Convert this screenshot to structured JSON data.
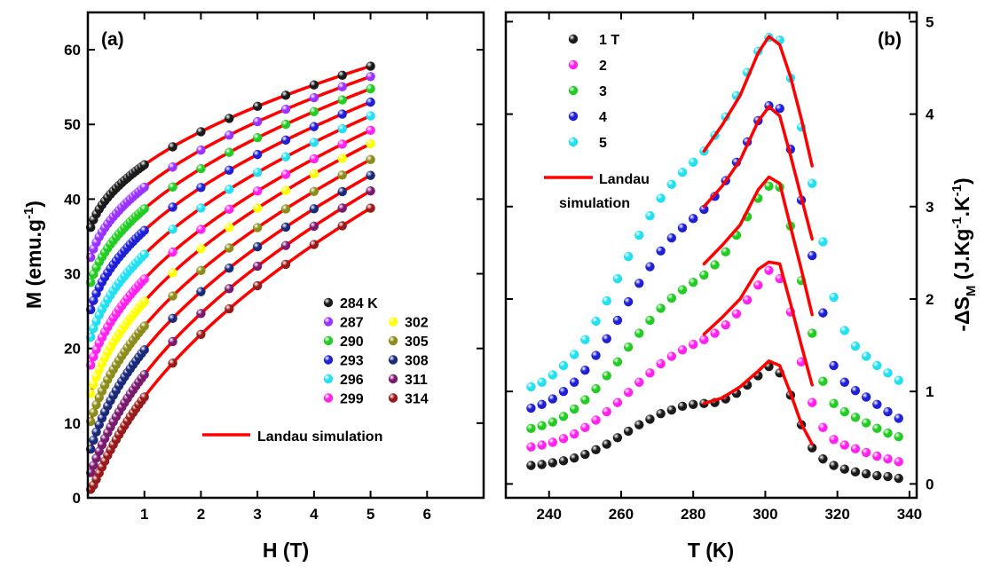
{
  "chart_data": [
    {
      "type": "scatter",
      "panel_label": "(a)",
      "xlabel": "H (T)",
      "ylabel": "M (emu.g-1)",
      "ylabel_parts": {
        "main": "M (emu.g",
        "sup": "-1",
        "end": ")"
      },
      "xlim": [
        0,
        7
      ],
      "ylim": [
        0,
        65
      ],
      "xticks": [
        1,
        2,
        3,
        4,
        5,
        6
      ],
      "yticks": [
        0,
        10,
        20,
        30,
        40,
        50,
        60
      ],
      "x": [
        0.05,
        0.1,
        0.15,
        0.2,
        0.25,
        0.3,
        0.35,
        0.4,
        0.45,
        0.5,
        0.55,
        0.6,
        0.65,
        0.7,
        0.75,
        0.8,
        0.85,
        0.9,
        0.95,
        1.0,
        1.5,
        2.0,
        2.5,
        3.0,
        3.5,
        4.0,
        4.5,
        5.0
      ],
      "series": [
        {
          "name": "284 K",
          "color": "#1a1a1a",
          "m0": 33.7,
          "m1": 44.6,
          "m5": 57.8
        },
        {
          "name": "287",
          "color": "#9933ff",
          "m0": 29.4,
          "m1": 41.6,
          "m5": 56.4
        },
        {
          "name": "290",
          "color": "#22cc22",
          "m0": 26.2,
          "m1": 38.7,
          "m5": 54.8
        },
        {
          "name": "293",
          "color": "#1f1fd6",
          "m0": 22.3,
          "m1": 35.8,
          "m5": 53.0
        },
        {
          "name": "296",
          "color": "#22e0f0",
          "m0": 18.8,
          "m1": 32.6,
          "m5": 51.2
        },
        {
          "name": "299",
          "color": "#ff22ee",
          "m0": 15.3,
          "m1": 29.3,
          "m5": 49.3
        },
        {
          "name": "302",
          "color": "#ffff00",
          "m0": 11.2,
          "m1": 26.3,
          "m5": 47.5
        },
        {
          "name": "305",
          "color": "#8c8c1a",
          "m0": 7.6,
          "m1": 23.0,
          "m5": 45.4
        },
        {
          "name": "308",
          "color": "#1a2a78",
          "m0": 3.9,
          "m1": 19.8,
          "m5": 43.3
        },
        {
          "name": "311",
          "color": "#7a1a6e",
          "m0": 1.6,
          "m1": 16.5,
          "m5": 41.3
        },
        {
          "name": "314",
          "color": "#991a1a",
          "m0": 0.6,
          "m1": 13.5,
          "m5": 39.1
        }
      ],
      "fit_name": "Landau simulation",
      "fit_color": "#ff0000",
      "legend_position": "lower-right"
    },
    {
      "type": "scatter",
      "panel_label": "(b)",
      "xlabel": "T (K)",
      "ylabel": "-ΔSM (J.Kg-1.K-1)",
      "ylabel_parts": {
        "pre": "-ΔS",
        "sub": "M",
        "mid1": " (J.Kg",
        "sup1": "-1",
        "mid2": ".K",
        "sup2": "-1",
        "end": ")"
      },
      "xlim": [
        228,
        342
      ],
      "ylim": [
        -0.15,
        5.1
      ],
      "xticks": [
        240,
        260,
        280,
        300,
        320,
        340
      ],
      "yticks": [
        0,
        1,
        2,
        3,
        4,
        5
      ],
      "yaxis_side": "right",
      "x": [
        235,
        238,
        241,
        244,
        247,
        250,
        253,
        256,
        259,
        262,
        265,
        268,
        271,
        274,
        277,
        280,
        283,
        286,
        289,
        292,
        295,
        298,
        301,
        304,
        307,
        310,
        313,
        316,
        319,
        322,
        325,
        328,
        331,
        334,
        337
      ],
      "series": [
        {
          "name": "1 T",
          "color": "#1a1a1a",
          "values": [
            0.2,
            0.21,
            0.23,
            0.25,
            0.28,
            0.32,
            0.37,
            0.43,
            0.5,
            0.57,
            0.64,
            0.7,
            0.76,
            0.8,
            0.84,
            0.86,
            0.87,
            0.88,
            0.92,
            0.98,
            1.07,
            1.17,
            1.27,
            1.2,
            0.96,
            0.64,
            0.39,
            0.27,
            0.2,
            0.16,
            0.13,
            0.11,
            0.09,
            0.08,
            0.06
          ]
        },
        {
          "name": "2",
          "color": "#ff22ee",
          "values": [
            0.4,
            0.42,
            0.45,
            0.49,
            0.54,
            0.61,
            0.69,
            0.78,
            0.88,
            0.99,
            1.1,
            1.2,
            1.3,
            1.38,
            1.45,
            1.51,
            1.56,
            1.63,
            1.72,
            1.84,
            1.99,
            2.15,
            2.31,
            2.22,
            1.86,
            1.32,
            0.88,
            0.61,
            0.48,
            0.42,
            0.38,
            0.34,
            0.3,
            0.27,
            0.24
          ]
        },
        {
          "name": "3",
          "color": "#22cc22",
          "values": [
            0.6,
            0.63,
            0.67,
            0.73,
            0.81,
            0.91,
            1.03,
            1.17,
            1.32,
            1.48,
            1.63,
            1.77,
            1.9,
            2.01,
            2.1,
            2.18,
            2.26,
            2.37,
            2.51,
            2.69,
            2.89,
            3.09,
            3.22,
            3.21,
            2.79,
            2.2,
            1.63,
            1.11,
            0.87,
            0.78,
            0.72,
            0.66,
            0.6,
            0.55,
            0.51
          ]
        },
        {
          "name": "4",
          "color": "#1f1fd6",
          "values": [
            0.82,
            0.86,
            0.92,
            1.0,
            1.1,
            1.23,
            1.39,
            1.57,
            1.77,
            1.97,
            2.17,
            2.35,
            2.52,
            2.66,
            2.77,
            2.87,
            2.97,
            3.11,
            3.28,
            3.48,
            3.7,
            3.93,
            4.09,
            4.06,
            3.62,
            3.07,
            2.47,
            1.85,
            1.28,
            1.1,
            1.01,
            0.94,
            0.86,
            0.78,
            0.71
          ]
        },
        {
          "name": "5",
          "color": "#22e0f0",
          "values": [
            1.05,
            1.1,
            1.18,
            1.28,
            1.4,
            1.56,
            1.76,
            1.98,
            2.22,
            2.46,
            2.69,
            2.9,
            3.09,
            3.24,
            3.37,
            3.48,
            3.6,
            3.77,
            3.97,
            4.2,
            4.45,
            4.68,
            4.83,
            4.8,
            4.39,
            3.86,
            3.25,
            2.62,
            2.02,
            1.66,
            1.49,
            1.38,
            1.28,
            1.2,
            1.12
          ]
        }
      ],
      "fit_series": [
        {
          "name": "1 T",
          "x": [
            283,
            288,
            293,
            298,
            301,
            304,
            307,
            310,
            313
          ],
          "values": [
            0.87,
            0.93,
            1.05,
            1.22,
            1.33,
            1.28,
            0.98,
            0.65,
            0.43
          ]
        },
        {
          "name": "2",
          "x": [
            283,
            288,
            293,
            298,
            301,
            304,
            307,
            310,
            313
          ],
          "values": [
            1.62,
            1.8,
            2.0,
            2.32,
            2.4,
            2.38,
            1.95,
            1.5,
            1.07
          ]
        },
        {
          "name": "3",
          "x": [
            283,
            288,
            293,
            298,
            301,
            304,
            307,
            310,
            313
          ],
          "values": [
            2.38,
            2.58,
            2.8,
            3.18,
            3.32,
            3.25,
            2.78,
            2.32,
            1.83
          ]
        },
        {
          "name": "4",
          "x": [
            283,
            288,
            293,
            298,
            301,
            304,
            307,
            310,
            313
          ],
          "values": [
            3.0,
            3.22,
            3.5,
            3.92,
            4.08,
            3.98,
            3.55,
            3.1,
            2.65
          ]
        },
        {
          "name": "5",
          "x": [
            283,
            288,
            293,
            298,
            301,
            304,
            307,
            310,
            313
          ],
          "values": [
            3.6,
            3.88,
            4.2,
            4.66,
            4.84,
            4.75,
            4.4,
            3.95,
            3.44
          ]
        }
      ],
      "fit_name_line1": "Landau",
      "fit_name_line2": "simulation",
      "fit_color": "#ff0000",
      "legend_position": "top-left"
    }
  ]
}
